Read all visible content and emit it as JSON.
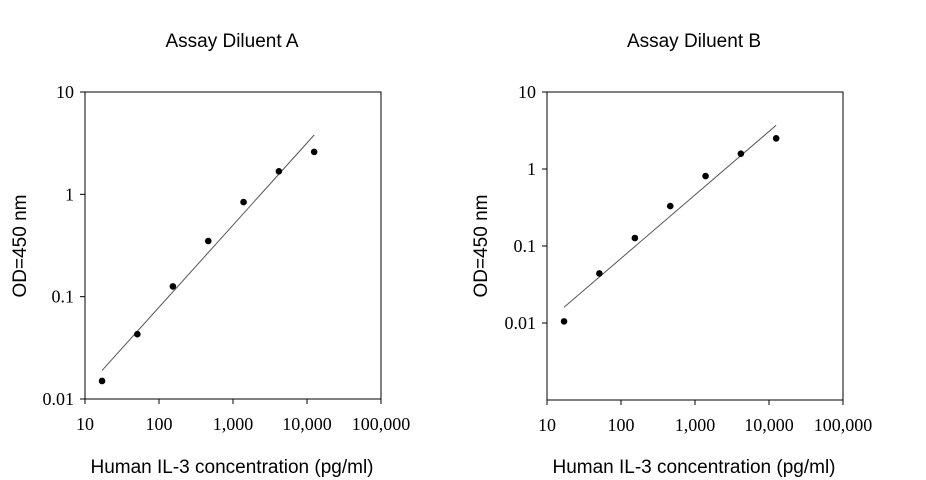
{
  "chart_data": [
    {
      "type": "scatter",
      "title": "Assay Diluent A",
      "xlabel": "Human IL-3 concentration (pg/ml)",
      "ylabel": "OD=450 nm",
      "x_scale": "log",
      "y_scale": "log",
      "xlim": [
        10,
        100000
      ],
      "ylim": [
        0.01,
        10
      ],
      "x_ticks": [
        10,
        100,
        1000,
        10000,
        100000
      ],
      "x_tick_labels": [
        "10",
        "100",
        "1,000",
        "10,000",
        "100,000"
      ],
      "y_ticks": [
        0.01,
        0.1,
        1,
        10
      ],
      "y_tick_labels": [
        "0.01",
        "0.1",
        "1",
        "10"
      ],
      "grid": false,
      "points": [
        {
          "x": 17,
          "y": 0.015
        },
        {
          "x": 51,
          "y": 0.043
        },
        {
          "x": 154,
          "y": 0.126
        },
        {
          "x": 463,
          "y": 0.35
        },
        {
          "x": 1389,
          "y": 0.84
        },
        {
          "x": 4167,
          "y": 1.68
        },
        {
          "x": 12500,
          "y": 2.6
        }
      ],
      "fit_line": [
        {
          "x": 17,
          "y": 0.019
        },
        {
          "x": 12500,
          "y": 3.8
        }
      ]
    },
    {
      "type": "scatter",
      "title": "Assay Diluent B",
      "xlabel": "Human IL-3 concentration (pg/ml)",
      "ylabel": "OD=450 nm",
      "x_scale": "log",
      "y_scale": "log",
      "xlim": [
        10,
        100000
      ],
      "ylim": [
        0.001,
        10
      ],
      "x_ticks": [
        10,
        100,
        1000,
        10000,
        100000
      ],
      "x_tick_labels": [
        "10",
        "100",
        "1,000",
        "10,000",
        "100,000"
      ],
      "y_ticks": [
        0.01,
        0.1,
        1,
        10
      ],
      "y_tick_labels": [
        "0.01",
        "0.1",
        "1",
        "10"
      ],
      "grid": false,
      "points": [
        {
          "x": 17,
          "y": 0.0105
        },
        {
          "x": 51,
          "y": 0.044
        },
        {
          "x": 154,
          "y": 0.127
        },
        {
          "x": 463,
          "y": 0.33
        },
        {
          "x": 1389,
          "y": 0.81
        },
        {
          "x": 4167,
          "y": 1.58
        },
        {
          "x": 12500,
          "y": 2.5
        }
      ],
      "fit_line": [
        {
          "x": 17,
          "y": 0.016
        },
        {
          "x": 12500,
          "y": 3.7
        }
      ]
    }
  ]
}
